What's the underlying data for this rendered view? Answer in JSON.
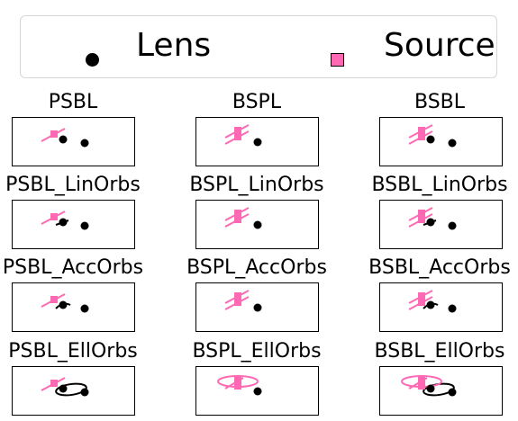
{
  "legend": {
    "lens_label": "Lens",
    "source_label": "Source",
    "lens_color": "#000000",
    "source_color": "#ff69b4"
  },
  "panels": [
    {
      "title": "PSBL",
      "model": "PSBL",
      "orbit": "none"
    },
    {
      "title": "BSPL",
      "model": "BSPL",
      "orbit": "none"
    },
    {
      "title": "BSBL",
      "model": "BSBL",
      "orbit": "none"
    },
    {
      "title": "PSBL_LinOrbs",
      "model": "PSBL",
      "orbit": "linear"
    },
    {
      "title": "BSPL_LinOrbs",
      "model": "BSPL",
      "orbit": "linear"
    },
    {
      "title": "BSBL_LinOrbs",
      "model": "BSBL",
      "orbit": "linear"
    },
    {
      "title": "PSBL_AccOrbs",
      "model": "PSBL",
      "orbit": "accelerated"
    },
    {
      "title": "BSPL_AccOrbs",
      "model": "BSPL",
      "orbit": "accelerated"
    },
    {
      "title": "BSBL_AccOrbs",
      "model": "BSBL",
      "orbit": "accelerated"
    },
    {
      "title": "PSBL_EllOrbs",
      "model": "PSBL",
      "orbit": "elliptical"
    },
    {
      "title": "BSPL_EllOrbs",
      "model": "BSPL",
      "orbit": "elliptical"
    },
    {
      "title": "BSBL_EllOrbs",
      "model": "BSBL",
      "orbit": "elliptical"
    }
  ]
}
